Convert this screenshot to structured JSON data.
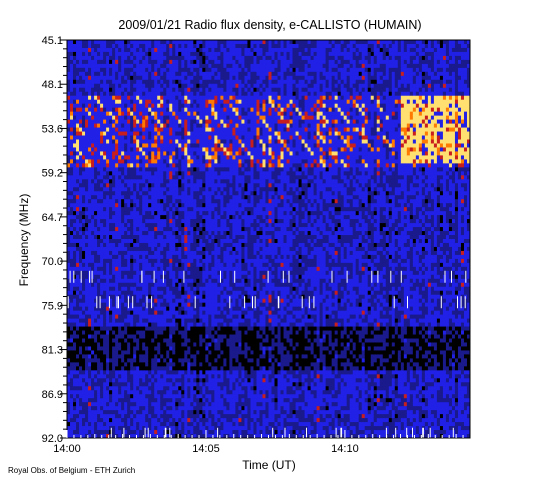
{
  "chart_data": {
    "type": "heatmap",
    "title": "2009/01/21  Radio flux density, e-CALLISTO (HUMAIN)",
    "xlabel": "Time (UT)",
    "ylabel": "Frequency (MHz)",
    "credit": "Royal Obs. of Belgium - ETH Zurich",
    "x_tick_labels": [
      "14:00",
      "14:05",
      "14:10"
    ],
    "x_range_minutes": [
      0,
      14.5
    ],
    "x_tick_minutes": [
      0,
      5,
      10
    ],
    "y_tick_labels": [
      "45.1",
      "48.1",
      "53.6",
      "59.2",
      "64.7",
      "70.0",
      "75.9",
      "81.3",
      "86.9",
      "92.0"
    ],
    "y_range": [
      45.1,
      92.0
    ],
    "y_direction": "increasing downward",
    "colormap": [
      "#000000",
      "#1a1a8c",
      "#2020e6",
      "#c81e1e",
      "#ff7a00",
      "#ffe070"
    ],
    "features": {
      "background": "mostly blue noise with vertical streaks",
      "emission_band_mhz": [
        53.6,
        59.2
      ],
      "diagonal_drifting_streaks": "red/orange streaks drifting to higher frequency over time within 51–60 MHz",
      "bright_patch": "yellow/orange emission near 14:12–14:14 between 51 and 59 MHz",
      "dark_band_mhz": [
        79,
        84
      ],
      "white_tick_rows_mhz": [
        73,
        76,
        91.5
      ]
    }
  }
}
